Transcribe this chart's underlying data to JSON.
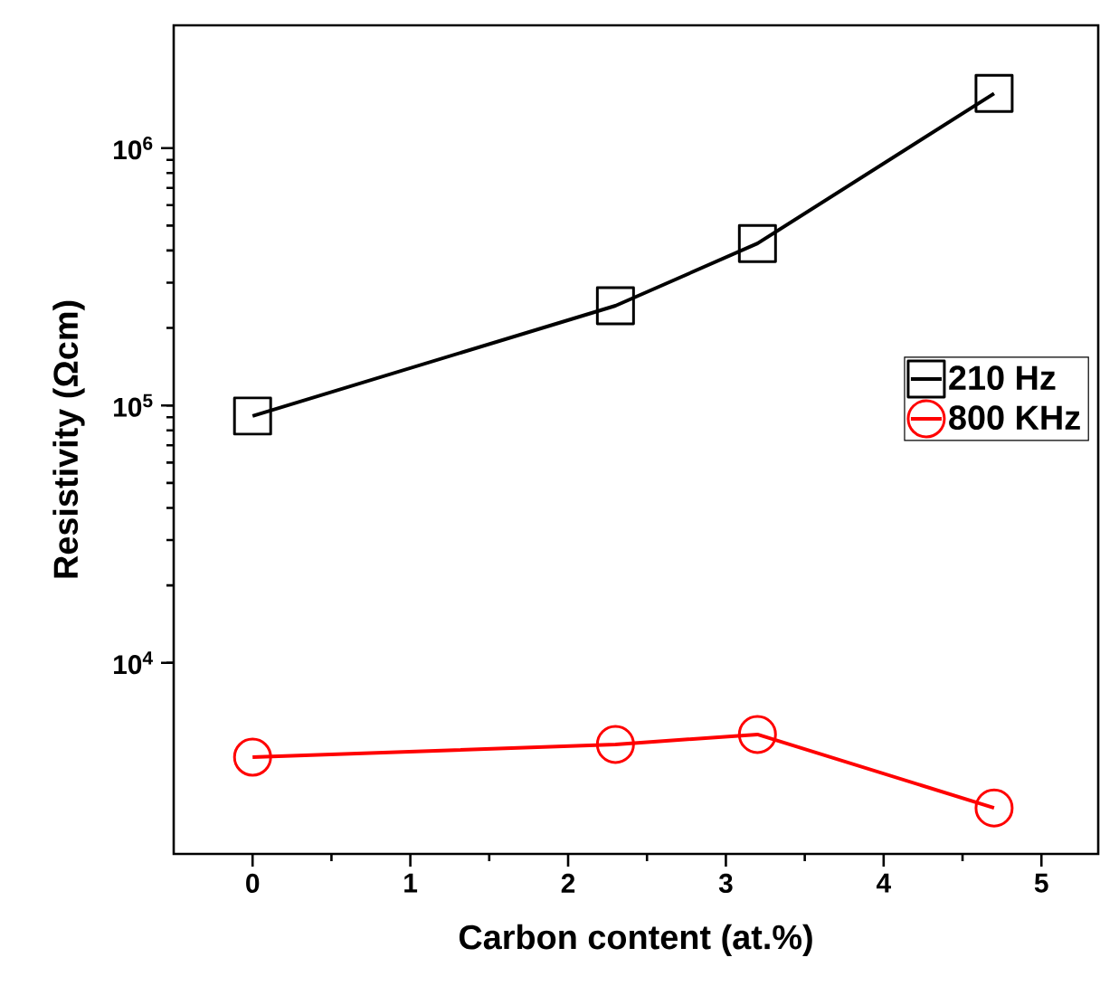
{
  "chart_data": {
    "type": "line",
    "xlabel": "Carbon content (at.%)",
    "ylabel": "Resistivity (Ωcm)",
    "x": [
      0,
      2.3,
      3.2,
      4.7
    ],
    "series": [
      {
        "name": "210 Hz",
        "color": "#000000",
        "marker": "square",
        "values": [
          91000,
          244000,
          426000,
          1630000
        ]
      },
      {
        "name": "800 KHz",
        "color": "#ff0000",
        "marker": "circle",
        "values": [
          4300,
          4820,
          5270,
          2730
        ]
      }
    ],
    "xlim": [
      -0.5,
      5.36
    ],
    "ylim": [
      1810,
      3000000
    ],
    "xticks": [
      0,
      1,
      2,
      3,
      4,
      5
    ],
    "yticks": [
      {
        "value": 10000,
        "label": "10$^{4}$"
      },
      {
        "value": 100000,
        "label": "10$^{5}$"
      },
      {
        "value": 1000000,
        "label": "10$^{6}$"
      }
    ],
    "log": "y",
    "legend": "right",
    "line_style": "solid"
  }
}
